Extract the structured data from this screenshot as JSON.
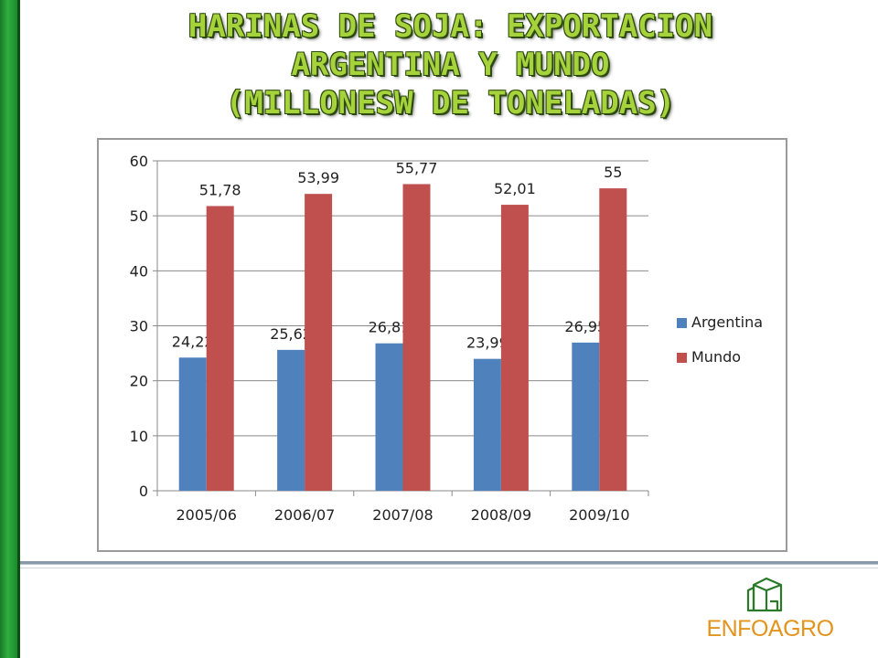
{
  "title": {
    "line1": "HARINAS DE SOJA: EXPORTACION",
    "line2": "ARGENTINA Y  MUNDO",
    "line3": "(MILLONESW DE TONELADAS)"
  },
  "colors": {
    "argentina": "#4f81bd",
    "mundo": "#c0504d",
    "title": "#a6d23c",
    "brand": "#e2941c"
  },
  "chart_data": {
    "type": "bar",
    "categories": [
      "2005/06",
      "2006/07",
      "2007/08",
      "2008/09",
      "2009/10"
    ],
    "series": [
      {
        "name": "Argentina",
        "values": [
          24.22,
          25.62,
          26.81,
          23.99,
          26.95
        ],
        "labels": [
          "24,22",
          "25,62",
          "26,81",
          "23,99",
          "26,95"
        ]
      },
      {
        "name": "Mundo",
        "values": [
          51.78,
          53.99,
          55.77,
          52.01,
          55
        ],
        "labels": [
          "51,78",
          "53,99",
          "55,77",
          "52,01",
          "55"
        ]
      }
    ],
    "ylim": [
      0,
      60
    ],
    "yticks": [
      0,
      10,
      20,
      30,
      40,
      50,
      60
    ],
    "grid": true,
    "legend": "right"
  },
  "logo": {
    "text": "ENFOAGRO",
    "icon": "silo-icon"
  }
}
